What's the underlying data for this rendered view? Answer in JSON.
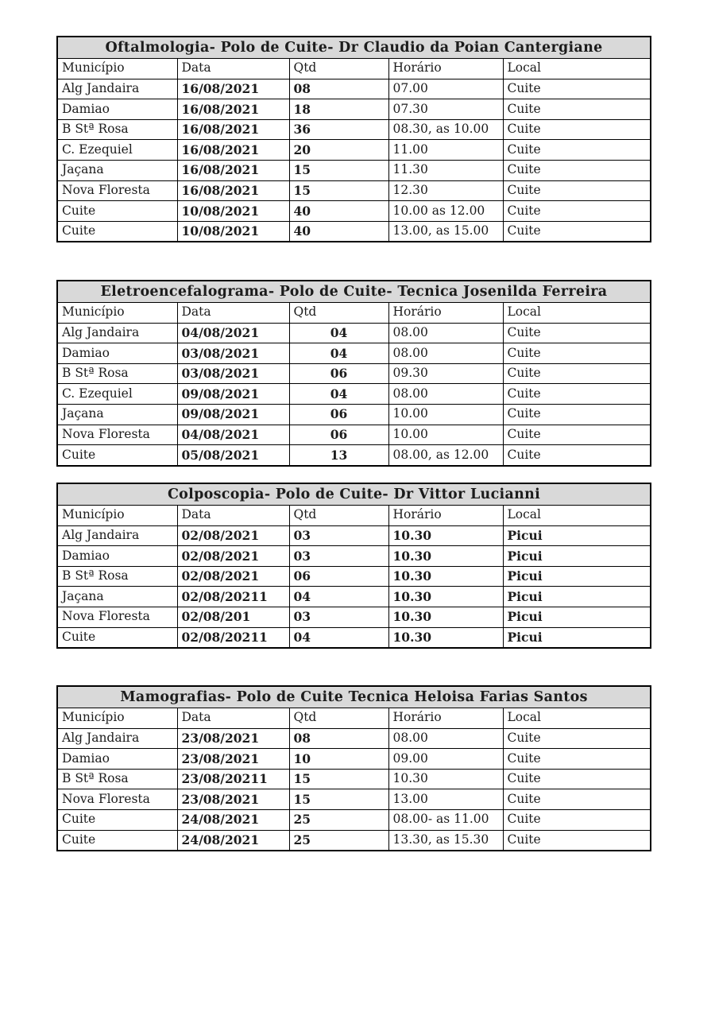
{
  "document": {
    "background_color": "#ffffff",
    "title_bar_color": "#d9d9d9",
    "border_color": "#000000",
    "tables": [
      {
        "title": "Oftalmologia- Polo de Cuite- Dr Claudio da Poian Cantergiane",
        "columns": [
          "Município",
          "Data",
          "Qtd",
          "Horário",
          "Local"
        ],
        "rows": [
          [
            "Alg Jandaira",
            "16/08/2021",
            "08",
            "07.00",
            "Cuite"
          ],
          [
            "Damiao",
            "16/08/2021",
            "18",
            "07.30",
            "Cuite"
          ],
          [
            "B Stª Rosa",
            "16/08/2021",
            "36",
            "08.30, as 10.00",
            "Cuite"
          ],
          [
            "C. Ezequiel",
            "16/08/2021",
            "20",
            "11.00",
            "Cuite"
          ],
          [
            "Jaçana",
            "16/08/2021",
            "15",
            "11.30",
            "Cuite"
          ],
          [
            "Nova Floresta",
            "16/08/2021",
            "15",
            "12.30",
            "Cuite"
          ],
          [
            "Cuite",
            "10/08/2021",
            "40",
            "10.00 as 12.00",
            "Cuite"
          ],
          [
            "Cuite",
            "10/08/2021",
            "40",
            "13.00, as 15.00",
            "Cuite"
          ]
        ]
      },
      {
        "title": "Eletroencefalograma- Polo de Cuite- Tecnica Josenilda Ferreira",
        "columns": [
          "Município",
          "Data",
          "Qtd",
          "Horário",
          "Local"
        ],
        "rows": [
          [
            "Alg Jandaira",
            "04/08/2021",
            "04",
            "08.00",
            "Cuite"
          ],
          [
            "Damiao",
            "03/08/2021",
            "04",
            "08.00",
            "Cuite"
          ],
          [
            "B Stª Rosa",
            "03/08/2021",
            "06",
            "09.30",
            "Cuite"
          ],
          [
            "C. Ezequiel",
            "09/08/2021",
            "04",
            "08.00",
            "Cuite"
          ],
          [
            "Jaçana",
            "09/08/2021",
            "06",
            "10.00",
            "Cuite"
          ],
          [
            "Nova Floresta",
            "04/08/2021",
            "06",
            "10.00",
            "Cuite"
          ],
          [
            "Cuite",
            "05/08/2021",
            "13",
            "08.00, as 12.00",
            "Cuite"
          ]
        ]
      },
      {
        "title": "Colposcopia- Polo de Cuite- Dr Vittor Lucianni",
        "columns": [
          "Município",
          "Data",
          "Qtd",
          "Horário",
          "Local"
        ],
        "rows": [
          [
            "Alg Jandaira",
            "02/08/2021",
            "03",
            "10.30",
            "Picui"
          ],
          [
            "Damiao",
            "02/08/2021",
            "03",
            "10.30",
            "Picui"
          ],
          [
            "B Stª Rosa",
            "02/08/2021",
            "06",
            "10.30",
            "Picui"
          ],
          [
            "Jaçana",
            "02/08/20211",
            "04",
            "10.30",
            "Picui"
          ],
          [
            "Nova Floresta",
            "02/08/201",
            "03",
            "10.30",
            "Picui"
          ],
          [
            "Cuite",
            "02/08/20211",
            "04",
            "10.30",
            "Picui"
          ]
        ]
      },
      {
        "title": "Mamografias- Polo de Cuite Tecnica Heloisa Farias Santos",
        "columns": [
          "Município",
          "Data",
          "Qtd",
          "Horário",
          "Local"
        ],
        "rows": [
          [
            "Alg Jandaira",
            "23/08/2021",
            "08",
            "08.00",
            "Cuite"
          ],
          [
            "Damiao",
            "23/08/2021",
            "10",
            "09.00",
            "Cuite"
          ],
          [
            "B Stª Rosa",
            "23/08/20211",
            "15",
            "10.30",
            "Cuite"
          ],
          [
            "Nova Floresta",
            "23/08/2021",
            "15",
            "13.00",
            "Cuite"
          ],
          [
            "Cuite",
            "24/08/2021",
            "25",
            "08.00- as 11.00",
            "Cuite"
          ],
          [
            "Cuite",
            "24/08/2021",
            "25",
            "13.30, as 15.30",
            "Cuite"
          ]
        ]
      }
    ]
  }
}
